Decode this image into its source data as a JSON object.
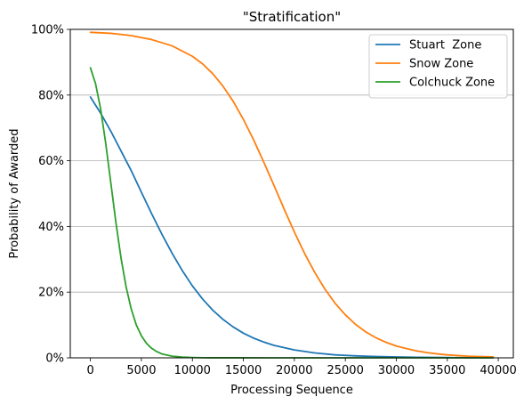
{
  "chart_data": {
    "type": "line",
    "title": "\"Stratification\"",
    "xlabel": "Processing Sequence",
    "ylabel": "Probability of Awarded",
    "xlim": [
      -1975,
      41475
    ],
    "ylim": [
      0,
      100
    ],
    "x_ticks": [
      0,
      5000,
      10000,
      15000,
      20000,
      25000,
      30000,
      35000,
      40000
    ],
    "x_tick_labels": [
      "0",
      "5000",
      "10000",
      "15000",
      "20000",
      "25000",
      "30000",
      "35000",
      "40000"
    ],
    "y_ticks": [
      0,
      20,
      40,
      60,
      80,
      100
    ],
    "y_tick_labels": [
      "0%",
      "20%",
      "40%",
      "60%",
      "80%",
      "100%"
    ],
    "grid": "horizontal",
    "legend_position": "upper right",
    "series": [
      {
        "name": "Stuart  Zone",
        "color": "#1f77b4",
        "x": [
          0,
          1000,
          2000,
          3000,
          4000,
          5000,
          6000,
          7000,
          8000,
          9000,
          10000,
          11000,
          12000,
          13000,
          14000,
          15000,
          16000,
          17000,
          18000,
          20000,
          22000,
          24000,
          26000,
          28000,
          30000,
          32000,
          35000,
          38000,
          39500
        ],
        "values": [
          79.4,
          74.5,
          69.0,
          63.0,
          57.0,
          50.4,
          43.9,
          37.7,
          31.9,
          26.6,
          21.9,
          17.9,
          14.5,
          11.7,
          9.4,
          7.5,
          6.0,
          4.8,
          3.8,
          2.4,
          1.5,
          0.9,
          0.6,
          0.4,
          0.25,
          0.15,
          0.08,
          0.04,
          0.03
        ]
      },
      {
        "name": "Snow Zone",
        "color": "#ff7f0e",
        "x": [
          0,
          2000,
          4000,
          6000,
          8000,
          10000,
          11000,
          12000,
          13000,
          14000,
          15000,
          16000,
          17000,
          18000,
          19000,
          20000,
          21000,
          22000,
          23000,
          24000,
          25000,
          26000,
          27000,
          28000,
          29000,
          30000,
          31000,
          32000,
          33000,
          34000,
          35000,
          36000,
          37000,
          38000,
          39500
        ],
        "values": [
          99.1,
          98.8,
          98.1,
          96.9,
          95.0,
          91.8,
          89.5,
          86.5,
          82.7,
          78.1,
          72.6,
          66.4,
          59.6,
          52.5,
          45.3,
          38.3,
          31.8,
          26.0,
          20.9,
          16.6,
          13.1,
          10.2,
          7.9,
          6.1,
          4.7,
          3.6,
          2.8,
          2.1,
          1.6,
          1.2,
          0.9,
          0.7,
          0.5,
          0.4,
          0.3
        ]
      },
      {
        "name": "Colchuck Zone",
        "color": "#2ca02c",
        "x": [
          0,
          500,
          1000,
          1500,
          2000,
          2500,
          3000,
          3500,
          4000,
          4500,
          5000,
          5500,
          6000,
          6500,
          7000,
          8000,
          9000,
          10000,
          11000,
          12000,
          14000,
          17000,
          20000,
          25000,
          30000,
          35000,
          39500
        ],
        "values": [
          88.3,
          83.5,
          75.8,
          65.3,
          53.3,
          41.2,
          30.4,
          21.6,
          14.9,
          10.0,
          6.7,
          4.4,
          2.9,
          1.9,
          1.2,
          0.5,
          0.22,
          0.1,
          0.04,
          0.02,
          0.01,
          0,
          0,
          0,
          0,
          0,
          0
        ]
      }
    ]
  }
}
